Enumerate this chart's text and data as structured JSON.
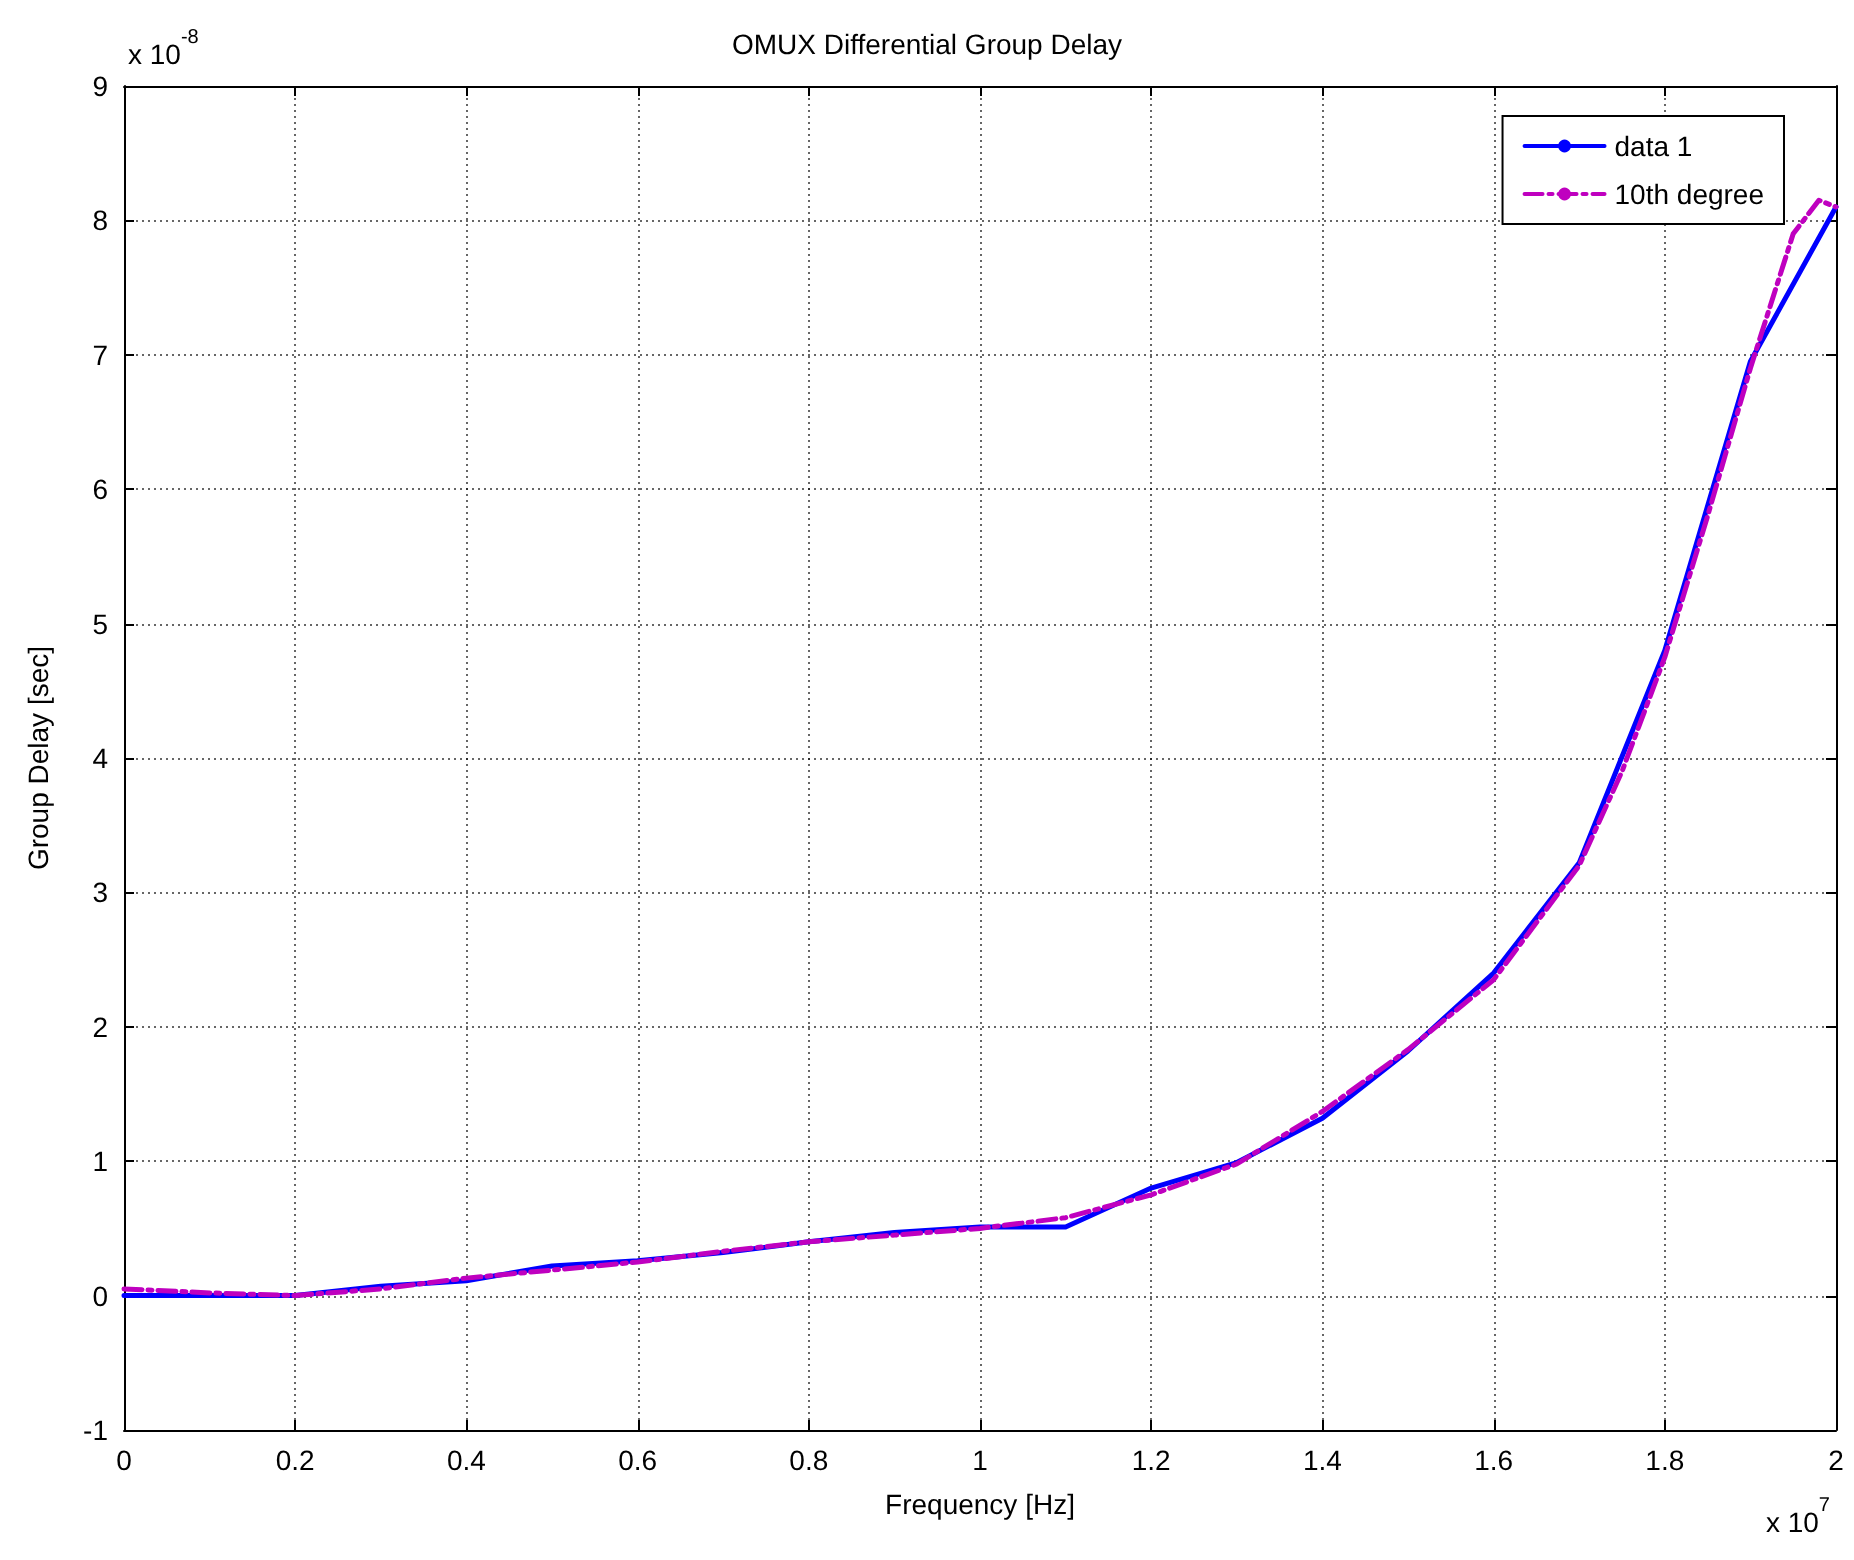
{
  "chart_data": {
    "type": "line",
    "title": "OMUX Differential Group Delay",
    "xlabel": "Frequency [Hz]",
    "ylabel": "Group Delay [sec]",
    "annotations": [
      "x 10$^{-8}$",
      "x 10$^{7}$"
    ],
    "xlim": [
      0,
      2
    ],
    "xticks": [
      0,
      0.2,
      0.4,
      0.6,
      0.8,
      1,
      1.2,
      1.4,
      1.6,
      1.8,
      2
    ],
    "ylim": [
      -1,
      9
    ],
    "yticks": [
      -1,
      0,
      1,
      2,
      3,
      4,
      5,
      6,
      7,
      8,
      9
    ],
    "grid": true,
    "legend": "top right",
    "series": [
      {
        "name": "data 1",
        "color": "#0000ff",
        "line_style": "solid",
        "x": [
          0,
          0.1,
          0.2,
          0.3,
          0.4,
          0.5,
          0.6,
          0.7,
          0.8,
          0.9,
          1.0,
          1.1,
          1.2,
          1.3,
          1.4,
          1.5,
          1.6,
          1.7,
          1.8,
          1.9,
          2.0
        ],
        "values": [
          0,
          0,
          0,
          0.07,
          0.11,
          0.22,
          0.26,
          0.32,
          0.4,
          0.47,
          0.51,
          0.51,
          0.8,
          0.99,
          1.32,
          1.82,
          2.4,
          3.22,
          4.8,
          6.95,
          8.1
        ]
      },
      {
        "name": "10th degree",
        "color": "#bf00bf",
        "line_style": "dashed",
        "x": [
          0,
          0.1,
          0.2,
          0.3,
          0.4,
          0.5,
          0.6,
          0.7,
          0.8,
          0.9,
          1.0,
          1.1,
          1.2,
          1.3,
          1.4,
          1.5,
          1.6,
          1.7,
          1.75,
          1.8,
          1.85,
          1.9,
          1.95,
          1.98,
          2.0
        ],
        "values": [
          0.05,
          0.02,
          0,
          0.05,
          0.13,
          0.19,
          0.25,
          0.33,
          0.4,
          0.45,
          0.5,
          0.58,
          0.75,
          0.98,
          1.37,
          1.83,
          2.35,
          3.2,
          3.9,
          4.75,
          5.8,
          6.9,
          7.9,
          8.15,
          8.1
        ]
      }
    ]
  }
}
